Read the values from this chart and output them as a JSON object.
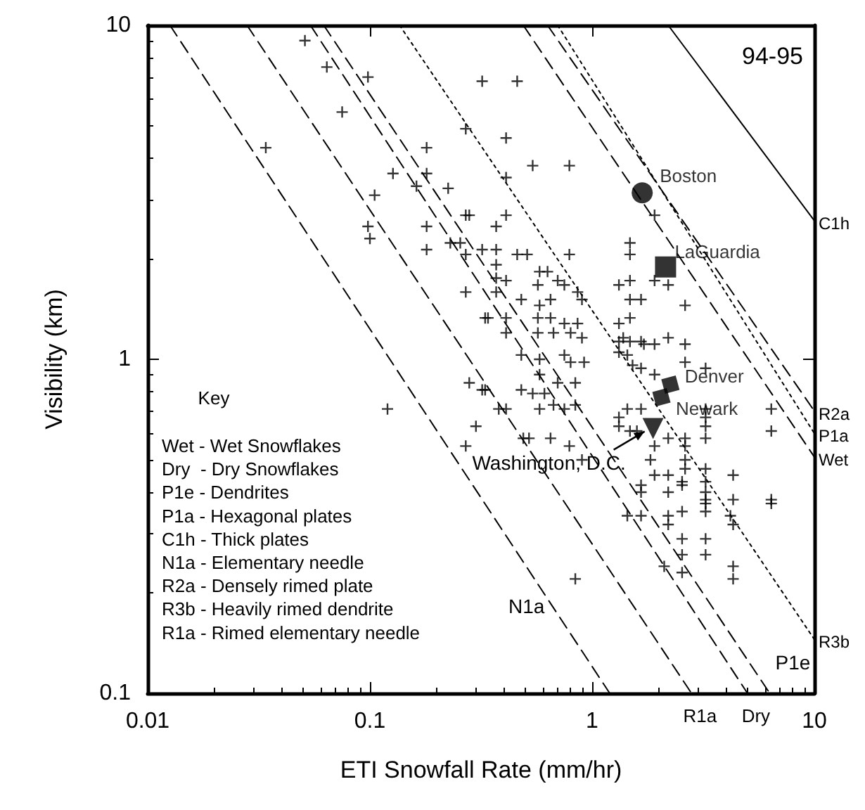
{
  "chart_data": {
    "type": "scatter",
    "xlabel": "ETI Snowfall Rate (mm/hr)",
    "ylabel": "Visibility (km)",
    "log": "xy",
    "grid": false,
    "legend": false,
    "xlim": [
      0.01,
      10
    ],
    "ylim": [
      0.1,
      10
    ],
    "xticks": [
      0.01,
      0.1,
      1,
      10
    ],
    "yticks": [
      0.1,
      1,
      10
    ],
    "annotations": [
      "94-95",
      "Key",
      "Wet - Wet Snowflakes",
      "Dry  - Dry Snowflakes",
      "P1e - Dendrites",
      "P1a - Hexagonal plates",
      "C1h - Thick plates",
      "N1a - Elementary needle",
      "R2a - Densely rimed plate",
      "R3b - Heavily rimed dendrite",
      "R1a - Rimed elementary needle",
      {
        "text": "Washington, D.C.",
        "x": 1.88,
        "y": 0.62
      }
    ],
    "series": [
      {
        "type": "scatter",
        "marker": "cross",
        "color": "#000000",
        "x": [
          0.051,
          0.064,
          0.098,
          0.075,
          0.034,
          0.18,
          0.127,
          0.105,
          0.18,
          0.162,
          0.225,
          0.098,
          0.1,
          0.18,
          0.18,
          0.27,
          0.28,
          0.23,
          0.255,
          0.27,
          0.32,
          0.37,
          0.37,
          0.37,
          0.37,
          0.27,
          0.37,
          0.33,
          0.32,
          0.27,
          0.46,
          0.41,
          0.41,
          0.54,
          0.79,
          0.41,
          1.91,
          1.48,
          1.48,
          0.46,
          0.51,
          0.58,
          0.63,
          0.79,
          0.41,
          0.57,
          0.7,
          0.75,
          0.86,
          0.48,
          0.58,
          0.65,
          0.9,
          1.32,
          1.48,
          1.91,
          1.48,
          1.66,
          2.2,
          2.62,
          0.34,
          0.41,
          0.57,
          0.65,
          0.75,
          0.86,
          1.32,
          1.48,
          1.38,
          1.48,
          1.71,
          1.91,
          2.2,
          2.62,
          0.41,
          0.67,
          0.8,
          0.57,
          0.9,
          0.48,
          0.58,
          0.75,
          0.8,
          0.92,
          1.32,
          1.44,
          1.52,
          1.91,
          2.62,
          3.24,
          1.66,
          0.58,
          0.7,
          0.84,
          0.32,
          0.48,
          0.54,
          0.61,
          0.38,
          0.41,
          0.67,
          0.75,
          0.84,
          0.58,
          1.44,
          1.66,
          1.32,
          1.32,
          1.48,
          1.59,
          3.24,
          3.24,
          3.24,
          6.4,
          6.4,
          0.3,
          0.49,
          0.52,
          0.65,
          0.79,
          1.91,
          1.83,
          2.2,
          2.62,
          2.62,
          3.24,
          2.62,
          2.62,
          3.24,
          3.24,
          4.31,
          1.91,
          1.66,
          1.66,
          2.2,
          2.2,
          2.54,
          2.54,
          3.24,
          3.24,
          4.31,
          6.4,
          6.4,
          1.44,
          1.66,
          2.2,
          2.2,
          2.54,
          3.24,
          3.24,
          4.19,
          4.31,
          2.54,
          2.54,
          3.24,
          3.24,
          2.11,
          2.54,
          4.31,
          4.31,
          0.84,
          0.9,
          0.28,
          0.33,
          0.12,
          0.27,
          1.32,
          1.66
        ],
        "values": [
          9.0,
          7.5,
          7.0,
          5.5,
          4.3,
          4.3,
          3.6,
          3.1,
          3.6,
          3.3,
          3.25,
          2.5,
          2.3,
          2.5,
          2.13,
          2.7,
          2.7,
          2.23,
          2.23,
          2.06,
          2.13,
          2.13,
          2.5,
          1.92,
          1.75,
          1.59,
          1.59,
          1.33,
          6.8,
          4.9,
          6.8,
          4.6,
          3.5,
          3.8,
          3.8,
          2.7,
          2.7,
          2.23,
          2.06,
          2.06,
          2.06,
          1.83,
          1.83,
          2.06,
          1.72,
          1.67,
          1.72,
          1.67,
          1.59,
          1.51,
          1.45,
          1.51,
          1.51,
          1.67,
          1.72,
          1.72,
          1.51,
          1.51,
          1.67,
          1.45,
          1.33,
          1.33,
          1.33,
          1.33,
          1.28,
          1.28,
          1.28,
          1.33,
          1.16,
          1.13,
          1.11,
          1.11,
          1.16,
          1.11,
          1.2,
          1.2,
          1.2,
          1.2,
          1.16,
          1.03,
          1.0,
          1.03,
          0.98,
          0.98,
          1.05,
          1.03,
          0.96,
          0.9,
          0.98,
          0.94,
          0.94,
          0.9,
          0.85,
          0.85,
          0.81,
          0.81,
          0.79,
          0.79,
          0.71,
          0.71,
          0.73,
          0.71,
          0.73,
          0.71,
          0.71,
          0.71,
          0.67,
          0.63,
          0.61,
          0.61,
          0.71,
          0.67,
          0.63,
          0.71,
          0.61,
          0.63,
          0.58,
          0.58,
          0.58,
          0.55,
          0.55,
          0.5,
          0.58,
          0.58,
          0.55,
          0.58,
          0.5,
          0.47,
          0.47,
          0.43,
          0.45,
          0.45,
          0.42,
          0.4,
          0.45,
          0.4,
          0.43,
          0.42,
          0.4,
          0.38,
          0.38,
          0.38,
          0.37,
          0.34,
          0.34,
          0.34,
          0.32,
          0.35,
          0.37,
          0.35,
          0.34,
          0.32,
          0.29,
          0.26,
          0.29,
          0.26,
          0.24,
          0.23,
          0.24,
          0.22,
          0.22,
          0.5,
          0.85,
          0.81,
          0.71,
          0.55,
          1.13,
          1.13
        ]
      },
      {
        "type": "scatter",
        "name": "Boston",
        "marker": "circle",
        "color": "#000000",
        "x": [
          1.68
        ],
        "values": [
          3.15
        ]
      },
      {
        "type": "scatter",
        "name": "LaGuardia",
        "marker": "square",
        "color": "#000000",
        "x": [
          2.14
        ],
        "values": [
          1.89
        ]
      },
      {
        "type": "scatter",
        "name": "Denver",
        "marker": "diamond",
        "color": "#000000",
        "x": [
          2.25
        ],
        "values": [
          0.84
        ]
      },
      {
        "type": "scatter",
        "name": "Newark",
        "marker": "diamond",
        "color": "#000000",
        "x": [
          2.05
        ],
        "values": [
          0.77
        ]
      },
      {
        "type": "scatter",
        "marker": "triangle",
        "color": "#000000",
        "x": [
          1.88
        ],
        "values": [
          0.62
        ]
      },
      {
        "type": "line",
        "name": "C1h",
        "line_style": "solid",
        "color": "#000000",
        "x": [
          2.2,
          10
        ],
        "values": [
          10,
          2.6
        ]
      },
      {
        "type": "line",
        "name": "R2a",
        "line_style": "dashed",
        "color": "#000000",
        "x": [
          0.63,
          10
        ],
        "values": [
          10,
          0.7
        ]
      },
      {
        "type": "line",
        "name": "P1a",
        "line_style": "dotted",
        "color": "#000000",
        "x": [
          0.7,
          10
        ],
        "values": [
          10,
          0.6
        ]
      },
      {
        "type": "line",
        "name": "Wet",
        "line_style": "dashed",
        "color": "#000000",
        "x": [
          0.49,
          10
        ],
        "values": [
          10,
          0.51
        ]
      },
      {
        "type": "line",
        "name": "R3b",
        "line_style": "dotted",
        "color": "#000000",
        "x": [
          0.136,
          10
        ],
        "values": [
          10,
          0.145
        ]
      },
      {
        "type": "line",
        "name": "P1e",
        "line_style": "dashed",
        "color": "#000000",
        "x": [
          0.062,
          6.3
        ],
        "values": [
          10,
          0.1
        ]
      },
      {
        "type": "line",
        "name": "Dry",
        "line_style": "dashed",
        "color": "#000000",
        "x": [
          0.054,
          5.0
        ],
        "values": [
          10,
          0.1
        ]
      },
      {
        "type": "line",
        "name": "R1a",
        "line_style": "dashed",
        "color": "#000000",
        "x": [
          0.028,
          2.8
        ],
        "values": [
          10,
          0.1
        ]
      },
      {
        "type": "line",
        "name": "N1a",
        "line_style": "dashed",
        "color": "#000000",
        "x": [
          0.0126,
          1.2
        ],
        "values": [
          10,
          0.1
        ]
      }
    ]
  }
}
